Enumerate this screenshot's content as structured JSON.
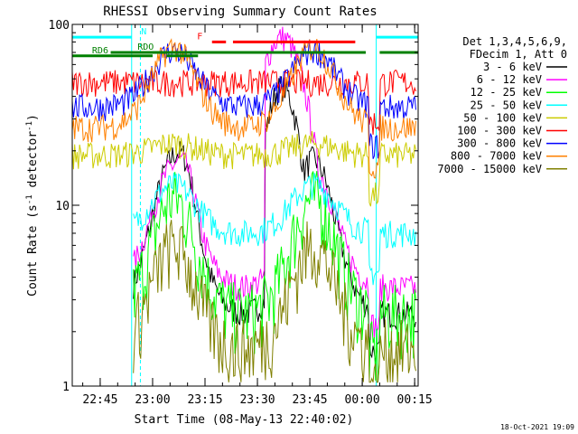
{
  "chart_data": {
    "type": "line",
    "title": "RHESSI Observing Summary Count Rates",
    "xlabel": "Start Time (08-May-13 22:40:02)",
    "ylabel_main": "Count Rate (s",
    "ylabel_sup1": "-1",
    "ylabel_mid": " detector",
    "ylabel_sup2": "-1",
    "ylabel_end": ")",
    "yscale": "log",
    "ylim": [
      1,
      100
    ],
    "xlim_minutes": [
      -3,
      96
    ],
    "x_ticks": [
      {
        "m": 5,
        "label": "22:45"
      },
      {
        "m": 20,
        "label": "23:00"
      },
      {
        "m": 35,
        "label": "23:15"
      },
      {
        "m": 50,
        "label": "23:30"
      },
      {
        "m": 65,
        "label": "23:45"
      },
      {
        "m": 80,
        "label": "00:00"
      },
      {
        "m": 95,
        "label": "00:15"
      }
    ],
    "y_ticks": [
      {
        "v": 1,
        "label": "1"
      },
      {
        "v": 10,
        "label": "10"
      },
      {
        "v": 100,
        "label": "100"
      }
    ],
    "legend": {
      "header": [
        "Det 1,3,4,5,6,9,",
        "FDecim 1, Att 0"
      ],
      "placement": "top-right"
    },
    "series": [
      {
        "name": "3 - 6 keV",
        "color": "#000000",
        "base": 2.5,
        "peak": 18,
        "flare": 45,
        "level": 0
      },
      {
        "name": "6 - 12 keV",
        "color": "#ff00ff",
        "base": 3.5,
        "peak": 16,
        "flare": 85,
        "level": 1
      },
      {
        "name": "12 - 25 keV",
        "color": "#00ff00",
        "base": 2.5,
        "peak": 11,
        "flare": 10,
        "level": 2
      },
      {
        "name": "25 - 50 keV",
        "color": "#00ffff",
        "base": 7,
        "peak": 13,
        "flare": 13,
        "level": 3
      },
      {
        "name": "50 - 100 keV",
        "color": "#cccc00",
        "base": 19,
        "peak": 22,
        "flare": 22,
        "level": 4
      },
      {
        "name": "100 - 300 keV",
        "color": "#ff0000",
        "base": 48,
        "peak": 48,
        "flare": 48,
        "level": 5
      },
      {
        "name": "300 - 800 keV",
        "color": "#0000ff",
        "base": 35,
        "peak": 72,
        "flare": 72,
        "level": 6
      },
      {
        "name": "800 - 7000 keV",
        "color": "#ff8000",
        "base": 27,
        "peak": 75,
        "flare": 75,
        "level": 7
      },
      {
        "name": "7000 - 15000 keV",
        "color": "#808000",
        "base": 1.6,
        "peak": 6,
        "flare": 6,
        "level": 8
      }
    ],
    "flags": [
      {
        "name": "N",
        "color": "#00ffff",
        "value": 85,
        "segments": [
          [
            -3,
            14
          ],
          [
            84,
            96
          ]
        ],
        "label": "N",
        "label_m": 17.5
      },
      {
        "name": "F",
        "color": "#ff0000",
        "value": 80,
        "segments": [
          [
            37,
            41
          ],
          [
            43,
            78
          ]
        ],
        "label": "F",
        "label_m": 33.5
      },
      {
        "name": "RDO",
        "color": "#008000",
        "value": 70,
        "segments": [
          [
            8,
            81
          ],
          [
            85,
            96
          ]
        ],
        "label": "RDO",
        "label_m": 18
      },
      {
        "name": "RD6",
        "color": "#008000",
        "value": 67,
        "segments": [
          [
            -3,
            20
          ],
          [
            24,
            33
          ]
        ],
        "label": "RD6",
        "label_m": 5
      }
    ],
    "vlines": [
      {
        "m": -3,
        "dashed": false
      },
      {
        "m": 14,
        "dashed": false
      },
      {
        "m": 16.5,
        "dashed": true
      },
      {
        "m": 84,
        "dashed": false
      },
      {
        "m": 96,
        "dashed": true
      }
    ]
  },
  "footer": {
    "timestamp": "18-Oct-2021 19:09"
  }
}
